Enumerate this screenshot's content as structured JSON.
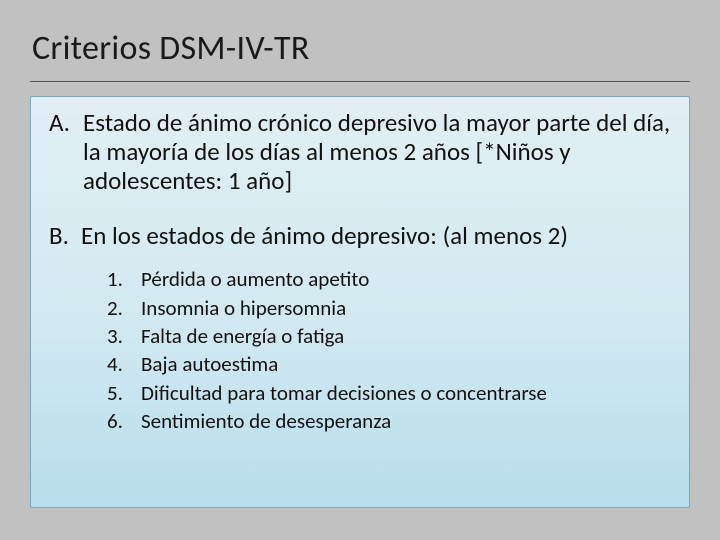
{
  "background_color": "#c1c1c1",
  "box_gradient_top": "#e2eff4",
  "box_gradient_bottom": "#b8ddec",
  "box_border_color": "#7aa7bb",
  "title_underline_color": "#555555",
  "text_color": "#111111",
  "font_family": "Calibri",
  "title": {
    "text": "Criterios DSM-IV-TR",
    "fontsize": 34
  },
  "criteria": {
    "A": {
      "marker": "A.",
      "text": "Estado de ánimo crónico depresivo la mayor parte del día, la mayoría de los días al menos 2 años [*Niños y adolescentes: 1 año]",
      "fontsize": 25
    },
    "B": {
      "marker": "B.",
      "text": "En los estados de ánimo depresivo: (al menos 2)",
      "fontsize": 25,
      "items": [
        {
          "marker": "1.",
          "text": "Pérdida o aumento apetito"
        },
        {
          "marker": "2.",
          "text": "Insomnia o hipersomnia"
        },
        {
          "marker": "3.",
          "text": "Falta de energía o fatiga"
        },
        {
          "marker": "4.",
          "text": "Baja autoestima"
        },
        {
          "marker": "5.",
          "text": "Dificultad para tomar decisiones o concentrarse"
        },
        {
          "marker": "6.",
          "text": "Sentimiento de desesperanza"
        }
      ],
      "items_fontsize": 21
    }
  }
}
